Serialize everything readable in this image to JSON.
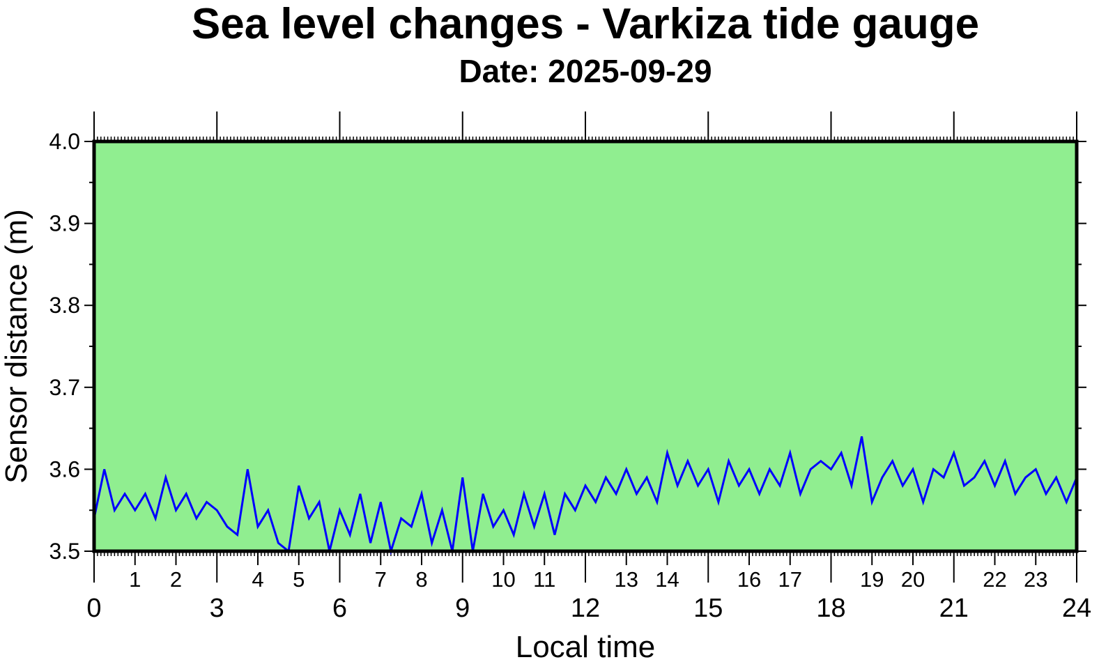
{
  "chart_data": {
    "type": "line",
    "title": "Sea level changes - Varkiza tide gauge",
    "subtitle": "Date: 2025-09-29",
    "xlabel": "Local time",
    "ylabel": "Sensor distance (m)",
    "xlim": [
      0,
      24
    ],
    "ylim": [
      3.5,
      4.0
    ],
    "y_ticks": [
      "3.5",
      "3.6",
      "3.7",
      "3.8",
      "3.9",
      "4.0"
    ],
    "x_major_ticks": [
      "0",
      "3",
      "6",
      "9",
      "12",
      "15",
      "18",
      "21",
      "24"
    ],
    "x_minor_ticks": [
      "1",
      "2",
      "4",
      "5",
      "7",
      "8",
      "10",
      "11",
      "13",
      "14",
      "16",
      "17",
      "19",
      "20",
      "22",
      "23"
    ],
    "background_color": "#90ee90",
    "line_color": "#0000ff",
    "grid": false,
    "series": [
      {
        "name": "Sensor distance",
        "x": [
          0,
          0.25,
          0.5,
          0.75,
          1,
          1.25,
          1.5,
          1.75,
          2,
          2.25,
          2.5,
          2.75,
          3,
          3.25,
          3.5,
          3.75,
          4,
          4.25,
          4.5,
          4.75,
          5,
          5.25,
          5.5,
          5.75,
          6,
          6.25,
          6.5,
          6.75,
          7,
          7.25,
          7.5,
          7.75,
          8,
          8.25,
          8.5,
          8.75,
          9,
          9.25,
          9.5,
          9.75,
          10,
          10.25,
          10.5,
          10.75,
          11,
          11.25,
          11.5,
          11.75,
          12,
          12.25,
          12.5,
          12.75,
          13,
          13.25,
          13.5,
          13.75,
          14,
          14.25,
          14.5,
          14.75,
          15,
          15.25,
          15.5,
          15.75,
          16,
          16.25,
          16.5,
          16.75,
          17,
          17.25,
          17.5,
          17.75,
          18,
          18.25,
          18.5,
          18.75,
          19,
          19.25,
          19.5,
          19.75,
          20,
          20.25,
          20.5,
          20.75,
          21,
          21.25,
          21.5,
          21.75,
          22,
          22.25,
          22.5,
          22.75,
          23,
          23.25,
          23.5,
          23.75,
          24
        ],
        "y": [
          3.54,
          3.6,
          3.55,
          3.57,
          3.55,
          3.57,
          3.54,
          3.59,
          3.55,
          3.57,
          3.54,
          3.56,
          3.55,
          3.53,
          3.52,
          3.6,
          3.53,
          3.55,
          3.51,
          3.5,
          3.58,
          3.54,
          3.56,
          3.5,
          3.55,
          3.52,
          3.57,
          3.51,
          3.56,
          3.5,
          3.54,
          3.53,
          3.57,
          3.51,
          3.55,
          3.5,
          3.59,
          3.5,
          3.57,
          3.53,
          3.55,
          3.52,
          3.57,
          3.53,
          3.57,
          3.52,
          3.57,
          3.55,
          3.58,
          3.56,
          3.59,
          3.57,
          3.6,
          3.57,
          3.59,
          3.56,
          3.62,
          3.58,
          3.61,
          3.58,
          3.6,
          3.56,
          3.61,
          3.58,
          3.6,
          3.57,
          3.6,
          3.58,
          3.62,
          3.57,
          3.6,
          3.61,
          3.6,
          3.62,
          3.58,
          3.64,
          3.56,
          3.59,
          3.61,
          3.58,
          3.6,
          3.56,
          3.6,
          3.59,
          3.62,
          3.58,
          3.59,
          3.61,
          3.58,
          3.61,
          3.57,
          3.59,
          3.6,
          3.57,
          3.59,
          3.56,
          3.59
        ]
      }
    ]
  }
}
